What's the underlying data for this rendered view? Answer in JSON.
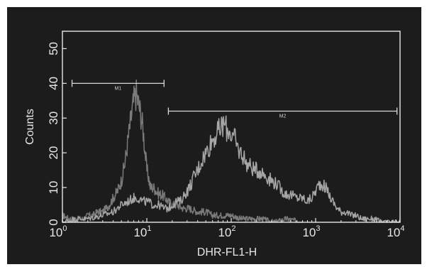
{
  "chart_data": {
    "type": "line",
    "title": "",
    "xlabel": "DHR-FL1-H",
    "ylabel": "Counts",
    "xscale": "log",
    "xlim": [
      1,
      10000
    ],
    "ylim": [
      0,
      55
    ],
    "grid": false,
    "background": "#1c1c1c",
    "axis_color": "#e8e8e8",
    "y_ticks": [
      {
        "value": 0,
        "label": "0"
      },
      {
        "value": 10,
        "label": "10"
      },
      {
        "value": 20,
        "label": "20"
      },
      {
        "value": 30,
        "label": "30"
      },
      {
        "value": 40,
        "label": "40"
      },
      {
        "value": 50,
        "label": "50"
      }
    ],
    "x_ticks": [
      {
        "value": 1,
        "base": "10",
        "exp": "0"
      },
      {
        "value": 10,
        "base": "10",
        "exp": "1"
      },
      {
        "value": 100,
        "base": "10",
        "exp": "2"
      },
      {
        "value": 1000,
        "base": "10",
        "exp": "3"
      },
      {
        "value": 10000,
        "base": "10",
        "exp": "4"
      }
    ],
    "markers": [
      {
        "name": "M1",
        "x_start": 1.3,
        "x_end": 16,
        "y": 40
      },
      {
        "name": "M2",
        "x_start": 18,
        "x_end": 9200,
        "y": 32
      }
    ],
    "series": [
      {
        "color": "#7a7a7a",
        "x": [
          1.0,
          1.2,
          1.5,
          1.8,
          2.0,
          2.3,
          2.6,
          3.0,
          3.3,
          3.6,
          4.0,
          4.5,
          5.0,
          5.5,
          6.0,
          6.5,
          7.0,
          7.5,
          8.0,
          8.5,
          9.0,
          9.5,
          10.0,
          10.5,
          11.0,
          12.0,
          13.0,
          14.0,
          15.0,
          16.5,
          18.0,
          20.0,
          23.0,
          27.0,
          32.0,
          40.0,
          50.0,
          60.0,
          75.0,
          100.0,
          130.0,
          170.0,
          230.0,
          320.0,
          450.0,
          700.0
        ],
        "y": [
          2,
          1,
          1,
          1,
          2,
          2,
          3,
          3,
          4,
          5,
          7,
          9,
          12,
          17,
          24,
          30,
          35,
          37,
          34,
          31,
          27,
          21,
          15,
          13,
          10,
          10,
          9,
          8,
          8,
          7,
          6,
          5,
          5,
          4,
          4,
          3,
          3,
          2,
          2,
          2,
          1,
          1,
          1,
          0,
          1,
          0
        ]
      },
      {
        "color": "#a6a6a6",
        "x": [
          1.0,
          1.5,
          2.0,
          3.0,
          4.0,
          5.0,
          6.0,
          7.0,
          8.0,
          9.0,
          10.0,
          12.0,
          14.0,
          16.0,
          18.0,
          20.0,
          22.0,
          25.0,
          28.0,
          32.0,
          36.0,
          40.0,
          45.0,
          50.0,
          55.0,
          60.0,
          65.0,
          70.0,
          75.0,
          80.0,
          85.0,
          90.0,
          95.0,
          100.0,
          110.0,
          120.0,
          130.0,
          140.0,
          150.0,
          170.0,
          190.0,
          210.0,
          240.0,
          270.0,
          300.0,
          350.0,
          400.0,
          450.0,
          500.0,
          600.0,
          700.0,
          800.0,
          900.0,
          1000.0,
          1100.0,
          1200.0,
          1300.0,
          1400.0,
          1500.0,
          1600.0,
          1800.0,
          2000.0,
          2300.0,
          2600.0,
          3000.0,
          3500.0,
          4000.0,
          5000.0,
          6000.0,
          8000.0,
          10000.0
        ],
        "y": [
          0,
          1,
          1,
          2,
          3,
          5,
          6,
          7,
          7,
          6,
          6,
          5,
          5,
          4,
          4,
          5,
          6,
          6,
          8,
          10,
          13,
          15,
          18,
          20,
          22,
          24,
          25,
          26,
          27,
          28,
          28,
          26,
          27,
          25,
          24,
          21,
          20,
          19,
          17,
          16,
          15,
          15,
          14,
          13,
          12,
          11,
          9,
          8,
          8,
          7,
          7,
          6,
          7,
          9,
          11,
          11,
          10,
          9,
          7,
          6,
          4,
          3,
          3,
          2,
          2,
          1,
          1,
          1,
          0,
          0,
          0
        ]
      }
    ]
  }
}
